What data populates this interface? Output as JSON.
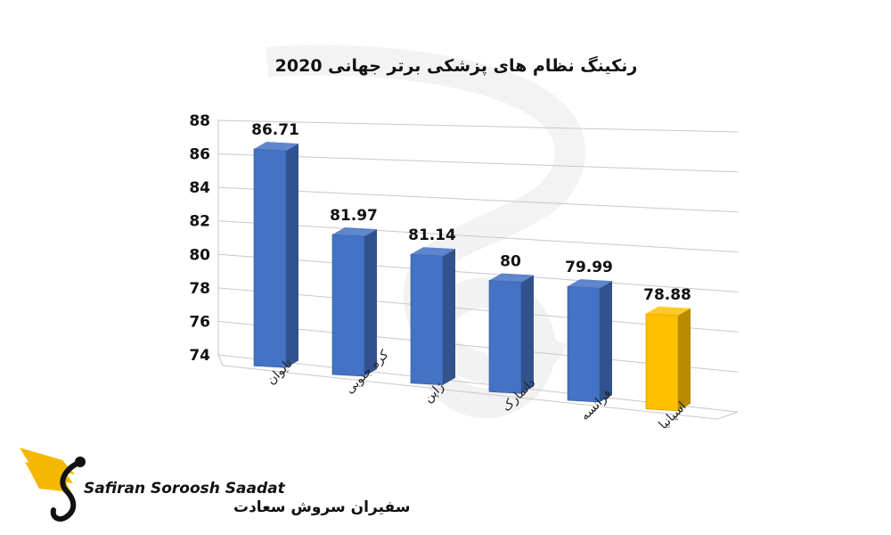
{
  "chart_data": {
    "type": "bar",
    "title": "رنکینگ نظام های پزشکی برتر جهانی 2020",
    "categories": [
      "تایوان",
      "کره جنوبی",
      "ژاپن",
      "دانمارک",
      "فرانسه",
      "اسپانیا"
    ],
    "values": [
      86.71,
      81.97,
      81.14,
      80,
      79.99,
      78.88
    ],
    "value_labels": [
      "86.71",
      "81.97",
      "81.14",
      "80",
      "79.99",
      "78.88"
    ],
    "ylim": [
      74,
      88
    ],
    "yticks": [
      "74",
      "76",
      "78",
      "80",
      "82",
      "84",
      "86",
      "88"
    ],
    "grid": true,
    "style": "3d-perspective",
    "colors": [
      "#4472c4",
      "#4472c4",
      "#4472c4",
      "#4472c4",
      "#4472c4",
      "#ffc000"
    ]
  },
  "logo": {
    "name_en": "Safiran Soroosh Saadat",
    "name_fa": "سفیران سروش سعادت",
    "icon": "winged-s-logo",
    "accent": "#f5b800"
  }
}
